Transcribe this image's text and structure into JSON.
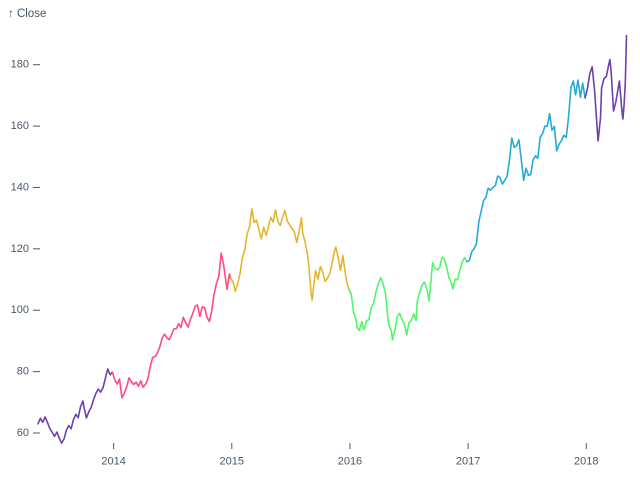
{
  "figure": {
    "background": "#ffffff",
    "axis_text_color": "#485868"
  },
  "chart_data": {
    "type": "line",
    "title": "",
    "xlabel": "",
    "ylabel": "↑ Close",
    "legend": "none",
    "grid": false,
    "x_ticks": [
      2014,
      2015,
      2016,
      2017,
      2018
    ],
    "y_ticks": [
      60,
      80,
      100,
      120,
      140,
      160,
      180
    ],
    "xlim": [
      2013.36,
      2018.37
    ],
    "ylim": [
      60,
      190
    ],
    "color_by": "year",
    "colors": {
      "2013": "#6e40aa",
      "2014": "#fe4b83",
      "2015": "#e2b72f",
      "2016": "#52f667",
      "2017": "#23abd8",
      "2018": "#6e40aa"
    },
    "axis_color": "#485868",
    "line_width": 1.6,
    "series_points": [
      [
        2013.36,
        63.0
      ],
      [
        2013.38,
        64.8
      ],
      [
        2013.4,
        63.5
      ],
      [
        2013.42,
        65.2
      ],
      [
        2013.44,
        63.4
      ],
      [
        2013.46,
        61.5
      ],
      [
        2013.48,
        60.2
      ],
      [
        2013.5,
        58.9
      ],
      [
        2013.52,
        60.3
      ],
      [
        2013.54,
        58.3
      ],
      [
        2013.56,
        56.7
      ],
      [
        2013.58,
        58.0
      ],
      [
        2013.6,
        60.9
      ],
      [
        2013.62,
        62.4
      ],
      [
        2013.64,
        61.4
      ],
      [
        2013.66,
        64.3
      ],
      [
        2013.68,
        66.1
      ],
      [
        2013.7,
        65.0
      ],
      [
        2013.72,
        68.5
      ],
      [
        2013.74,
        70.4
      ],
      [
        2013.75,
        68.2
      ],
      [
        2013.77,
        64.9
      ],
      [
        2013.79,
        66.9
      ],
      [
        2013.81,
        68.4
      ],
      [
        2013.83,
        70.8
      ],
      [
        2013.85,
        72.9
      ],
      [
        2013.87,
        74.3
      ],
      [
        2013.89,
        73.3
      ],
      [
        2013.91,
        74.7
      ],
      [
        2013.93,
        77.9
      ],
      [
        2013.95,
        80.9
      ],
      [
        2013.97,
        79.0
      ],
      [
        2013.99,
        79.8
      ],
      [
        2014.01,
        77.3
      ],
      [
        2014.03,
        75.9
      ],
      [
        2014.05,
        77.6
      ],
      [
        2014.07,
        71.5
      ],
      [
        2014.09,
        73.0
      ],
      [
        2014.11,
        75.0
      ],
      [
        2014.13,
        78.0
      ],
      [
        2014.15,
        76.7
      ],
      [
        2014.17,
        75.8
      ],
      [
        2014.19,
        76.6
      ],
      [
        2014.21,
        75.2
      ],
      [
        2014.23,
        77.0
      ],
      [
        2014.25,
        74.9
      ],
      [
        2014.27,
        75.9
      ],
      [
        2014.29,
        77.7
      ],
      [
        2014.31,
        81.7
      ],
      [
        2014.33,
        84.6
      ],
      [
        2014.35,
        84.9
      ],
      [
        2014.37,
        85.9
      ],
      [
        2014.39,
        88.0
      ],
      [
        2014.41,
        90.8
      ],
      [
        2014.43,
        92.2
      ],
      [
        2014.45,
        91.1
      ],
      [
        2014.47,
        90.4
      ],
      [
        2014.49,
        92.0
      ],
      [
        2014.51,
        93.9
      ],
      [
        2014.53,
        94.0
      ],
      [
        2014.55,
        95.6
      ],
      [
        2014.57,
        94.4
      ],
      [
        2014.59,
        97.7
      ],
      [
        2014.61,
        95.9
      ],
      [
        2014.63,
        94.5
      ],
      [
        2014.65,
        97.0
      ],
      [
        2014.67,
        99.0
      ],
      [
        2014.69,
        101.3
      ],
      [
        2014.71,
        101.7
      ],
      [
        2014.73,
        98.0
      ],
      [
        2014.75,
        101.1
      ],
      [
        2014.77,
        100.9
      ],
      [
        2014.79,
        97.7
      ],
      [
        2014.81,
        96.3
      ],
      [
        2014.83,
        99.8
      ],
      [
        2014.85,
        105.2
      ],
      [
        2014.87,
        108.7
      ],
      [
        2014.89,
        111.0
      ],
      [
        2014.91,
        118.6
      ],
      [
        2014.93,
        115.0
      ],
      [
        2014.95,
        109.4
      ],
      [
        2014.96,
        106.8
      ],
      [
        2014.98,
        111.8
      ],
      [
        2014.99,
        110.4
      ],
      [
        2015.01,
        109.3
      ],
      [
        2015.03,
        106.2
      ],
      [
        2015.05,
        108.7
      ],
      [
        2015.07,
        112.0
      ],
      [
        2015.09,
        117.2
      ],
      [
        2015.11,
        119.6
      ],
      [
        2015.13,
        124.8
      ],
      [
        2015.15,
        127.1
      ],
      [
        2015.17,
        133.0
      ],
      [
        2015.19,
        128.6
      ],
      [
        2015.21,
        129.4
      ],
      [
        2015.23,
        126.0
      ],
      [
        2015.25,
        123.2
      ],
      [
        2015.27,
        127.1
      ],
      [
        2015.29,
        124.4
      ],
      [
        2015.31,
        127.1
      ],
      [
        2015.33,
        130.3
      ],
      [
        2015.35,
        128.7
      ],
      [
        2015.37,
        132.7
      ],
      [
        2015.39,
        128.8
      ],
      [
        2015.41,
        127.6
      ],
      [
        2015.43,
        130.3
      ],
      [
        2015.45,
        132.5
      ],
      [
        2015.47,
        129.0
      ],
      [
        2015.49,
        127.8
      ],
      [
        2015.51,
        126.6
      ],
      [
        2015.53,
        125.4
      ],
      [
        2015.55,
        122.1
      ],
      [
        2015.57,
        125.7
      ],
      [
        2015.59,
        130.1
      ],
      [
        2015.6,
        125.2
      ],
      [
        2015.62,
        122.4
      ],
      [
        2015.64,
        118.4
      ],
      [
        2015.65,
        115.3
      ],
      [
        2015.67,
        105.8
      ],
      [
        2015.68,
        103.3
      ],
      [
        2015.7,
        110.2
      ],
      [
        2015.71,
        112.9
      ],
      [
        2015.73,
        110.1
      ],
      [
        2015.75,
        114.2
      ],
      [
        2015.77,
        112.4
      ],
      [
        2015.79,
        109.4
      ],
      [
        2015.81,
        110.4
      ],
      [
        2015.83,
        112.1
      ],
      [
        2015.85,
        115.5
      ],
      [
        2015.87,
        119.3
      ],
      [
        2015.88,
        120.6
      ],
      [
        2015.9,
        117.3
      ],
      [
        2015.92,
        113.0
      ],
      [
        2015.94,
        117.8
      ],
      [
        2015.95,
        115.1
      ],
      [
        2015.97,
        109.8
      ],
      [
        2015.99,
        106.8
      ],
      [
        2016.01,
        105.4
      ],
      [
        2016.02,
        102.7
      ],
      [
        2016.03,
        99.4
      ],
      [
        2016.05,
        97.1
      ],
      [
        2016.06,
        94.5
      ],
      [
        2016.08,
        93.4
      ],
      [
        2016.1,
        96.3
      ],
      [
        2016.11,
        94.5
      ],
      [
        2016.12,
        93.7
      ],
      [
        2016.14,
        96.6
      ],
      [
        2016.16,
        96.9
      ],
      [
        2016.18,
        100.8
      ],
      [
        2016.2,
        102.3
      ],
      [
        2016.22,
        105.9
      ],
      [
        2016.24,
        108.5
      ],
      [
        2016.26,
        110.6
      ],
      [
        2016.28,
        108.7
      ],
      [
        2016.3,
        105.7
      ],
      [
        2016.32,
        97.8
      ],
      [
        2016.33,
        95.2
      ],
      [
        2016.35,
        93.4
      ],
      [
        2016.36,
        90.3
      ],
      [
        2016.38,
        93.6
      ],
      [
        2016.4,
        97.9
      ],
      [
        2016.42,
        99.0
      ],
      [
        2016.44,
        97.1
      ],
      [
        2016.46,
        95.6
      ],
      [
        2016.48,
        92.0
      ],
      [
        2016.5,
        95.9
      ],
      [
        2016.52,
        96.7
      ],
      [
        2016.54,
        98.8
      ],
      [
        2016.56,
        96.7
      ],
      [
        2016.57,
        102.9
      ],
      [
        2016.59,
        105.9
      ],
      [
        2016.61,
        108.2
      ],
      [
        2016.63,
        109.2
      ],
      [
        2016.65,
        106.9
      ],
      [
        2016.67,
        103.1
      ],
      [
        2016.69,
        111.8
      ],
      [
        2016.7,
        115.6
      ],
      [
        2016.72,
        113.6
      ],
      [
        2016.74,
        113.1
      ],
      [
        2016.76,
        114.1
      ],
      [
        2016.78,
        117.3
      ],
      [
        2016.8,
        116.6
      ],
      [
        2016.82,
        113.7
      ],
      [
        2016.84,
        110.4
      ],
      [
        2016.86,
        108.8
      ],
      [
        2016.87,
        106.9
      ],
      [
        2016.89,
        110.1
      ],
      [
        2016.91,
        109.9
      ],
      [
        2016.93,
        113.0
      ],
      [
        2016.95,
        115.8
      ],
      [
        2016.97,
        117.1
      ],
      [
        2016.99,
        115.8
      ],
      [
        2017.01,
        116.2
      ],
      [
        2017.03,
        119.0
      ],
      [
        2017.05,
        120.0
      ],
      [
        2017.07,
        121.6
      ],
      [
        2017.09,
        128.8
      ],
      [
        2017.11,
        132.1
      ],
      [
        2017.13,
        135.7
      ],
      [
        2017.15,
        136.7
      ],
      [
        2017.17,
        139.8
      ],
      [
        2017.19,
        139.1
      ],
      [
        2017.21,
        140.0
      ],
      [
        2017.23,
        140.6
      ],
      [
        2017.25,
        143.7
      ],
      [
        2017.27,
        143.3
      ],
      [
        2017.29,
        141.1
      ],
      [
        2017.31,
        142.3
      ],
      [
        2017.33,
        143.7
      ],
      [
        2017.35,
        149.0
      ],
      [
        2017.37,
        156.1
      ],
      [
        2017.39,
        153.1
      ],
      [
        2017.41,
        153.6
      ],
      [
        2017.43,
        155.5
      ],
      [
        2017.45,
        149.0
      ],
      [
        2017.47,
        142.3
      ],
      [
        2017.49,
        146.3
      ],
      [
        2017.51,
        144.0
      ],
      [
        2017.53,
        144.2
      ],
      [
        2017.55,
        149.0
      ],
      [
        2017.57,
        150.3
      ],
      [
        2017.59,
        149.5
      ],
      [
        2017.61,
        156.4
      ],
      [
        2017.63,
        157.5
      ],
      [
        2017.65,
        160.0
      ],
      [
        2017.67,
        159.9
      ],
      [
        2017.69,
        164.1
      ],
      [
        2017.71,
        158.6
      ],
      [
        2017.73,
        159.9
      ],
      [
        2017.75,
        151.9
      ],
      [
        2017.77,
        154.1
      ],
      [
        2017.79,
        155.3
      ],
      [
        2017.81,
        157.0
      ],
      [
        2017.83,
        156.3
      ],
      [
        2017.85,
        163.1
      ],
      [
        2017.87,
        172.5
      ],
      [
        2017.89,
        174.7
      ],
      [
        2017.91,
        170.2
      ],
      [
        2017.93,
        175.0
      ],
      [
        2017.95,
        169.4
      ],
      [
        2017.97,
        174.0
      ],
      [
        2017.99,
        169.2
      ],
      [
        2018.01,
        172.3
      ],
      [
        2018.03,
        177.1
      ],
      [
        2018.05,
        179.3
      ],
      [
        2018.07,
        171.5
      ],
      [
        2018.09,
        160.5
      ],
      [
        2018.1,
        155.2
      ],
      [
        2018.12,
        162.7
      ],
      [
        2018.13,
        172.4
      ],
      [
        2018.15,
        175.5
      ],
      [
        2018.17,
        176.2
      ],
      [
        2018.19,
        180.0
      ],
      [
        2018.2,
        181.7
      ],
      [
        2018.21,
        178.0
      ],
      [
        2018.23,
        164.9
      ],
      [
        2018.25,
        167.8
      ],
      [
        2018.27,
        172.4
      ],
      [
        2018.28,
        174.7
      ],
      [
        2018.3,
        165.7
      ],
      [
        2018.31,
        162.3
      ],
      [
        2018.32,
        167.0
      ],
      [
        2018.33,
        174.0
      ],
      [
        2018.34,
        189.5
      ]
    ]
  }
}
